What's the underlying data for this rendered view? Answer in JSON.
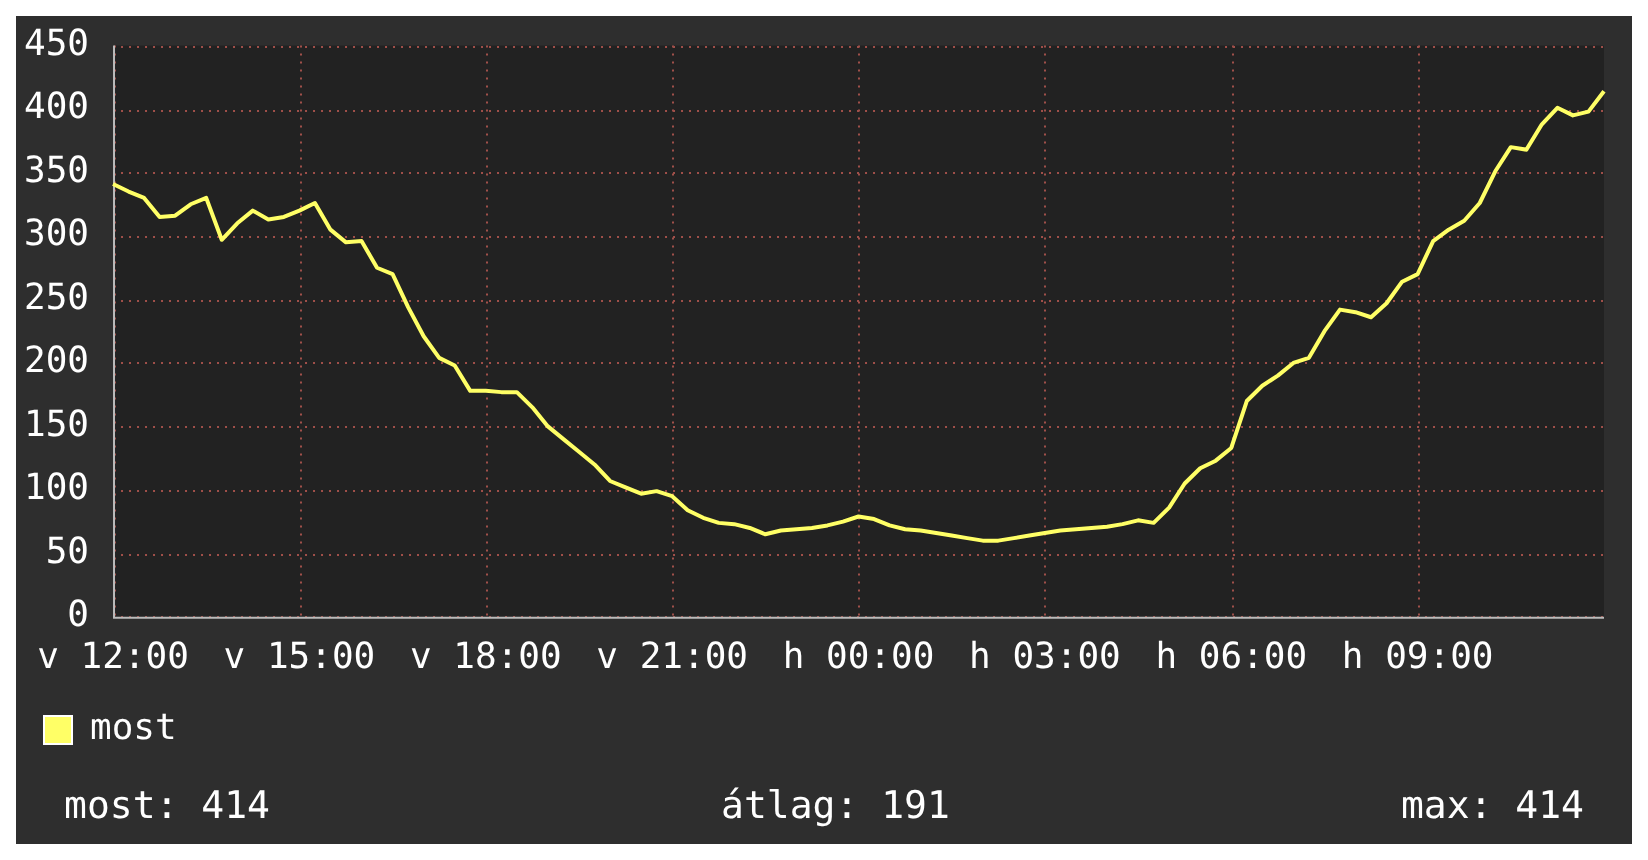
{
  "chart_data": {
    "type": "line",
    "categories": [
      "v 12:00",
      null,
      null,
      null,
      null,
      null,
      null,
      null,
      null,
      null,
      null,
      null,
      "v 15:00",
      null,
      null,
      null,
      null,
      null,
      null,
      null,
      null,
      null,
      null,
      null,
      "v 18:00",
      null,
      null,
      null,
      null,
      null,
      null,
      null,
      null,
      null,
      null,
      null,
      "v 21:00",
      null,
      null,
      null,
      null,
      null,
      null,
      null,
      null,
      null,
      null,
      null,
      "h 00:00",
      null,
      null,
      null,
      null,
      null,
      null,
      null,
      null,
      null,
      null,
      null,
      "h 03:00",
      null,
      null,
      null,
      null,
      null,
      null,
      null,
      null,
      null,
      null,
      null,
      "h 06:00",
      null,
      null,
      null,
      null,
      null,
      null,
      null,
      null,
      null,
      null,
      null,
      "h 09:00",
      null,
      null,
      null,
      null,
      null,
      null,
      null,
      null,
      null,
      null,
      null,
      null
    ],
    "series": [
      {
        "name": "most",
        "color": "#ffff66",
        "values": [
          341,
          335,
          330,
          315,
          316,
          325,
          330,
          297,
          310,
          320,
          313,
          315,
          320,
          326,
          305,
          295,
          296,
          275,
          270,
          244,
          221,
          204,
          198,
          178,
          178,
          177,
          177,
          165,
          150,
          140,
          130,
          120,
          107,
          102,
          97,
          99,
          95,
          84,
          78,
          74,
          73,
          70,
          65,
          68,
          69,
          70,
          72,
          75,
          79,
          77,
          72,
          69,
          68,
          66,
          64,
          62,
          60,
          60,
          62,
          64,
          66,
          68,
          69,
          70,
          71,
          73,
          76,
          74,
          86,
          105,
          117,
          123,
          133,
          170,
          182,
          190,
          200,
          204,
          225,
          242,
          240,
          236,
          247,
          264,
          270,
          296,
          305,
          312,
          326,
          351,
          370,
          368,
          388,
          401,
          395,
          398,
          414
        ]
      }
    ],
    "ylim": [
      0,
      450
    ],
    "yticks": [
      0,
      50,
      100,
      150,
      200,
      250,
      300,
      350,
      400,
      450
    ],
    "grid": true,
    "legend": "bottom",
    "marker": "none",
    "line_style": "solid",
    "annotations": [
      "most: 414",
      "átlag: 191",
      "max: 414"
    ]
  }
}
